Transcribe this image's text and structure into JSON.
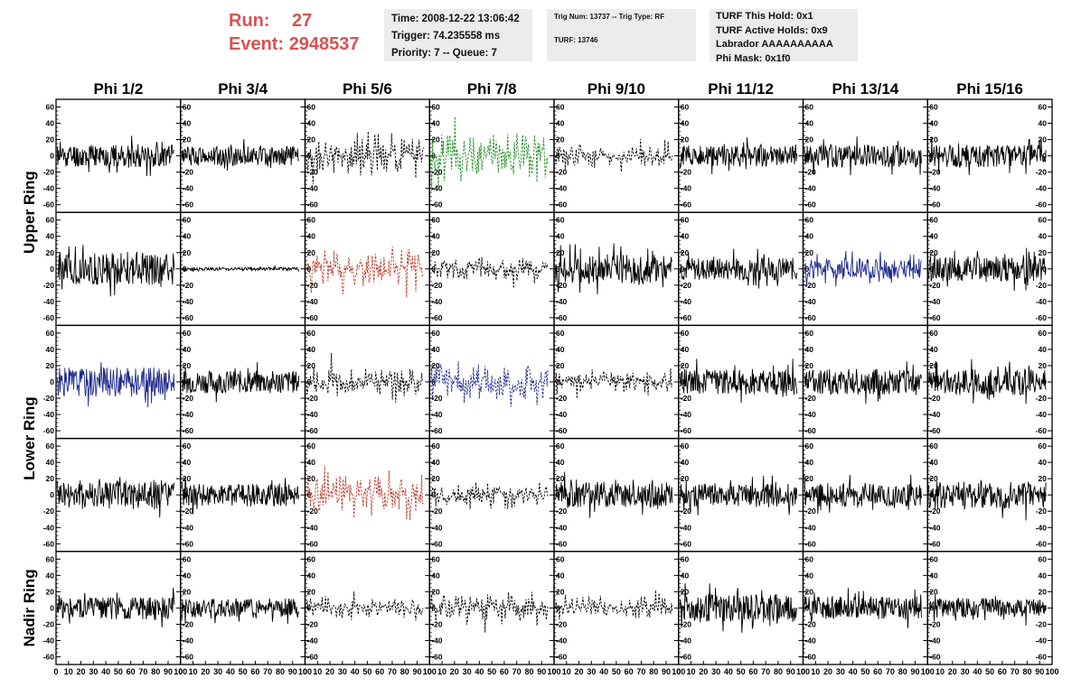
{
  "header": {
    "run_label": "Run:",
    "run_value": "27",
    "event_label": "Event:",
    "event_value": "2948537",
    "info_box_1": [
      "Time: 2008-12-22 13:06:42",
      "Trigger: 74.235558 ms",
      "Priority: 7 -- Queue: 7"
    ],
    "info_box_2": [
      "Trig Num: 13737 -- Trig Type: RF",
      "TURF: 13746"
    ],
    "info_box_3": [
      "TURF This Hold: 0x1",
      "TURF Active Holds: 0x9",
      "Labrador AAAAAAAAAA",
      "Phi Mask: 0x1f0"
    ]
  },
  "chart_data": {
    "type": "line",
    "columns": [
      "Phi 1/2",
      "Phi 3/4",
      "Phi 5/6",
      "Phi 7/8",
      "Phi 9/10",
      "Phi 11/12",
      "Phi 13/14",
      "Phi 15/16"
    ],
    "ring_labels": [
      {
        "text": "Upper Ring",
        "spans_rows": [
          0,
          1
        ]
      },
      {
        "text": "Lower Ring",
        "spans_rows": [
          2,
          3
        ]
      },
      {
        "text": "Nadir Ring",
        "spans_rows": [
          4
        ]
      }
    ],
    "xlim": [
      0,
      100
    ],
    "ylim": [
      -65,
      65
    ],
    "x_ticks": [
      0,
      10,
      20,
      30,
      40,
      50,
      60,
      70,
      80,
      90,
      100
    ],
    "y_ticks": [
      -60,
      -40,
      -20,
      0,
      20,
      40,
      60
    ],
    "panels": [
      [
        {
          "style": "solid",
          "color": "#000000",
          "amp": 14,
          "seed": 11
        },
        {
          "style": "solid",
          "color": "#000000",
          "amp": 12,
          "seed": 12
        },
        {
          "style": "dashed",
          "color": "#000000",
          "amp": 22,
          "seed": 13
        },
        {
          "style": "dashed",
          "color": "#1e8c1e",
          "amp": 28,
          "seed": 14
        },
        {
          "style": "dashed",
          "color": "#000000",
          "amp": 14,
          "seed": 15
        },
        {
          "style": "solid",
          "color": "#000000",
          "amp": 13,
          "seed": 16
        },
        {
          "style": "solid",
          "color": "#000000",
          "amp": 14,
          "seed": 17
        },
        {
          "style": "solid",
          "color": "#000000",
          "amp": 14,
          "seed": 18
        }
      ],
      [
        {
          "style": "solid",
          "color": "#000000",
          "amp": 20,
          "seed": 21
        },
        {
          "style": "solid",
          "color": "#000000",
          "amp": 2,
          "seed": 22
        },
        {
          "style": "dashed",
          "color": "#c0392b",
          "amp": 26,
          "seed": 23
        },
        {
          "style": "dashed",
          "color": "#000000",
          "amp": 14,
          "seed": 24
        },
        {
          "style": "solid",
          "color": "#000000",
          "amp": 18,
          "seed": 25
        },
        {
          "style": "solid",
          "color": "#000000",
          "amp": 14,
          "seed": 26
        },
        {
          "style": "solid",
          "color": "#1f2a8c",
          "amp": 13,
          "seed": 27
        },
        {
          "style": "solid",
          "color": "#000000",
          "amp": 16,
          "seed": 28
        }
      ],
      [
        {
          "style": "solid",
          "color": "#1f2a8c",
          "amp": 18,
          "seed": 31
        },
        {
          "style": "solid",
          "color": "#000000",
          "amp": 14,
          "seed": 32
        },
        {
          "style": "dashed",
          "color": "#000000",
          "amp": 16,
          "seed": 33
        },
        {
          "style": "dashed",
          "color": "#1f2a8c",
          "amp": 24,
          "seed": 34
        },
        {
          "style": "dashed",
          "color": "#000000",
          "amp": 12,
          "seed": 35
        },
        {
          "style": "solid",
          "color": "#000000",
          "amp": 16,
          "seed": 36
        },
        {
          "style": "solid",
          "color": "#000000",
          "amp": 16,
          "seed": 37
        },
        {
          "style": "solid",
          "color": "#000000",
          "amp": 16,
          "seed": 38
        }
      ],
      [
        {
          "style": "solid",
          "color": "#000000",
          "amp": 18,
          "seed": 41
        },
        {
          "style": "solid",
          "color": "#000000",
          "amp": 14,
          "seed": 42
        },
        {
          "style": "dashed",
          "color": "#c0392b",
          "amp": 24,
          "seed": 43
        },
        {
          "style": "dashed",
          "color": "#000000",
          "amp": 14,
          "seed": 44
        },
        {
          "style": "solid",
          "color": "#000000",
          "amp": 16,
          "seed": 45
        },
        {
          "style": "solid",
          "color": "#000000",
          "amp": 14,
          "seed": 46
        },
        {
          "style": "solid",
          "color": "#000000",
          "amp": 14,
          "seed": 47
        },
        {
          "style": "solid",
          "color": "#000000",
          "amp": 18,
          "seed": 48
        }
      ],
      [
        {
          "style": "solid",
          "color": "#000000",
          "amp": 14,
          "seed": 51
        },
        {
          "style": "solid",
          "color": "#000000",
          "amp": 12,
          "seed": 52
        },
        {
          "style": "dashed",
          "color": "#000000",
          "amp": 12,
          "seed": 53
        },
        {
          "style": "dashed",
          "color": "#000000",
          "amp": 18,
          "seed": 54
        },
        {
          "style": "dashed",
          "color": "#000000",
          "amp": 12,
          "seed": 55
        },
        {
          "style": "solid",
          "color": "#000000",
          "amp": 18,
          "seed": 56
        },
        {
          "style": "solid",
          "color": "#000000",
          "amp": 14,
          "seed": 57
        },
        {
          "style": "solid",
          "color": "#000000",
          "amp": 12,
          "seed": 58
        }
      ]
    ]
  }
}
